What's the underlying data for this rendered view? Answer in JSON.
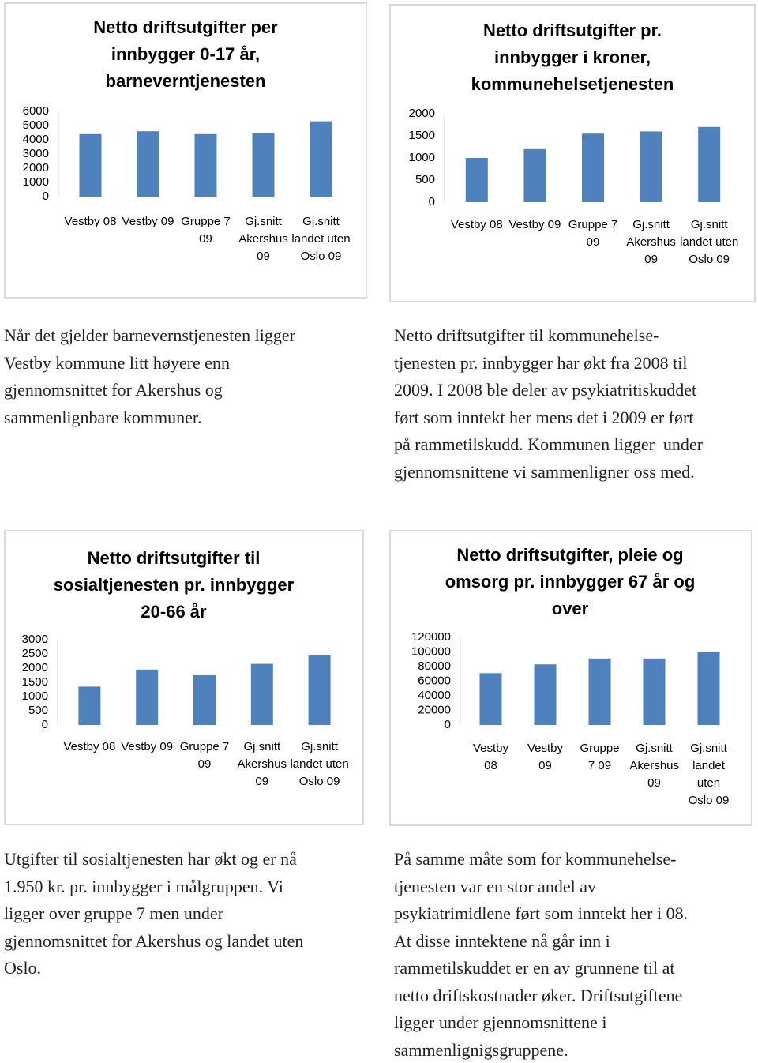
{
  "chart_data": [
    {
      "type": "bar",
      "title": "Netto driftsutgifter per innbygger 0-17 år, barneverntjenesten",
      "categories": [
        "Vestby 08",
        "Vestby 09",
        "Gruppe 7 09",
        "Gj.snitt Akershus 09",
        "Gj.snitt landet uten Oslo 09"
      ],
      "values": [
        4400,
        4600,
        4400,
        4500,
        5300
      ],
      "color": "#4f81bd",
      "ylim": [
        0,
        6000
      ],
      "yticks": [
        0,
        1000,
        2000,
        3000,
        4000,
        5000,
        6000
      ]
    },
    {
      "type": "bar",
      "title": "Netto driftsutgifter pr. innbygger i kroner, kommunehelsetjenesten",
      "categories": [
        "Vestby 08",
        "Vestby 09",
        "Gruppe 7 09",
        "Gj.snitt Akershus 09",
        "Gj.snitt landet uten Oslo 09"
      ],
      "values": [
        1000,
        1200,
        1550,
        1600,
        1700
      ],
      "color": "#4f81bd",
      "ylim": [
        0,
        2000
      ],
      "yticks": [
        0,
        500,
        1000,
        1500,
        2000
      ]
    },
    {
      "type": "bar",
      "title": "Netto driftsutgifter til sosialtjenesten pr. innbygger 20-66 år",
      "categories": [
        "Vestby 08",
        "Vestby 09",
        "Gruppe 7 09",
        "Gj.snitt Akershus 09",
        "Gj.snitt landet uten Oslo 09"
      ],
      "values": [
        1350,
        1950,
        1750,
        2150,
        2450
      ],
      "color": "#4f81bd",
      "ylim": [
        0,
        3000
      ],
      "yticks": [
        0,
        500,
        1000,
        1500,
        2000,
        2500,
        3000
      ]
    },
    {
      "type": "bar",
      "title": "Netto driftsutgifter, pleie og omsorg pr. innbygger 67 år og over",
      "categories": [
        "Vestby 08",
        "Vestby 09",
        "Gruppe 7 09",
        "Gj.snitt Akershus 09",
        "Gj.snitt landet uten Oslo 09"
      ],
      "values": [
        71000,
        83000,
        91000,
        91000,
        100000
      ],
      "color": "#4f81bd",
      "ylim": [
        0,
        120000
      ],
      "yticks": [
        0,
        20000,
        40000,
        60000,
        80000,
        100000,
        120000
      ]
    }
  ],
  "paragraphs": [
    [
      "Når det gjelder barnevernstjenesten ligger",
      "Vestby kommune litt høyere enn",
      "gjennomsnittet for Akershus og",
      "sammenlignbare kommuner."
    ],
    [
      "Netto driftsutgifter til kommunehelse-",
      "tjenesten pr. innbygger har økt fra 2008 til",
      "2009. I 2008 ble deler av psykiatritiskuddet",
      "ført som inntekt her mens det i 2009 er ført",
      "på rammetilskudd. Kommunen ligger  under",
      "gjennomsnittene vi sammenligner oss med."
    ],
    [
      "Utgifter til sosialtjenesten har økt og er nå",
      "1.950 kr. pr. innbygger i målgruppen. Vi",
      "ligger over gruppe 7 men under",
      "gjennomsnittet for Akershus og landet uten",
      "Oslo."
    ],
    [
      "På samme måte som for kommunehelse-",
      "tjenesten var en stor andel av",
      "psykiatrimidlene ført som inntekt her i 08.",
      "At disse inntektene nå går inn i",
      "rammetilskuddet er en av grunnene til at",
      "netto driftskostnader øker. Driftsutgiftene",
      "ligger under gjennomsnittene i",
      "sammenlignigsgruppene."
    ]
  ]
}
